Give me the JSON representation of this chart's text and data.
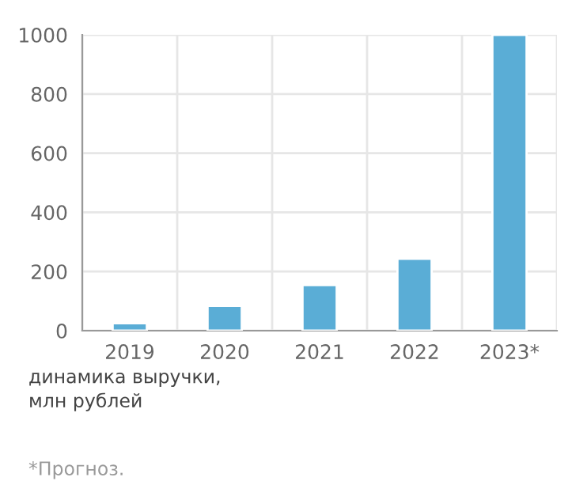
{
  "chart_data": {
    "type": "bar",
    "categories": [
      "2019",
      "2020",
      "2021",
      "2022",
      "2023*"
    ],
    "values": [
      25,
      84,
      154,
      243,
      1000
    ],
    "color": "#5aadd6",
    "ylim": [
      0,
      1000
    ],
    "yticks": [
      0,
      200,
      400,
      600,
      800,
      1000
    ],
    "grid": true,
    "annotations": [
      "динамика выручки,\nмлн рублей",
      "*Прогноз."
    ]
  }
}
